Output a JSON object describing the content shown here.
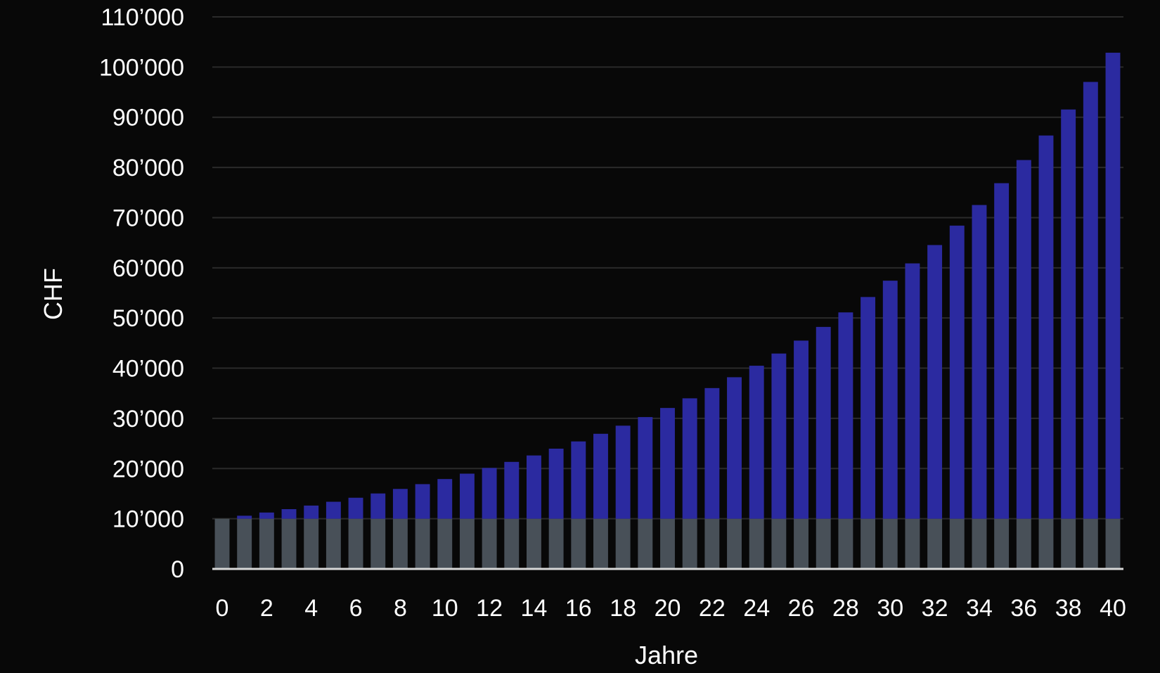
{
  "chart_data": {
    "type": "bar",
    "stacked": true,
    "xlabel": "Jahre",
    "ylabel": "CHF",
    "ylim": [
      0,
      110000
    ],
    "yticks": [
      "0",
      "10’000",
      "20’000",
      "30’000",
      "40’000",
      "50’000",
      "60’000",
      "70’000",
      "80’000",
      "90’000",
      "100’000",
      "110’000"
    ],
    "ytick_values": [
      0,
      10000,
      20000,
      30000,
      40000,
      50000,
      60000,
      70000,
      80000,
      90000,
      100000,
      110000
    ],
    "xticks": [
      "0",
      "2",
      "4",
      "6",
      "8",
      "10",
      "12",
      "14",
      "16",
      "18",
      "20",
      "22",
      "24",
      "26",
      "28",
      "30",
      "32",
      "34",
      "36",
      "38",
      "40"
    ],
    "xtick_values": [
      0,
      2,
      4,
      6,
      8,
      10,
      12,
      14,
      16,
      18,
      20,
      22,
      24,
      26,
      28,
      30,
      32,
      34,
      36,
      38,
      40
    ],
    "grid": true,
    "legend": "none",
    "x": [
      0,
      1,
      2,
      3,
      4,
      5,
      6,
      7,
      8,
      9,
      10,
      11,
      12,
      13,
      14,
      15,
      16,
      17,
      18,
      19,
      20,
      21,
      22,
      23,
      24,
      25,
      26,
      27,
      28,
      29,
      30,
      31,
      32,
      33,
      34,
      35,
      36,
      37,
      38,
      39,
      40
    ],
    "series": [
      {
        "color": "#485058",
        "values": [
          10000,
          10000,
          10000,
          10000,
          10000,
          10000,
          10000,
          10000,
          10000,
          10000,
          10000,
          10000,
          10000,
          10000,
          10000,
          10000,
          10000,
          10000,
          10000,
          10000,
          10000,
          10000,
          10000,
          10000,
          10000,
          10000,
          10000,
          10000,
          10000,
          10000,
          10000,
          10000,
          10000,
          10000,
          10000,
          10000,
          10000,
          10000,
          10000,
          10000,
          10000
        ]
      },
      {
        "color": "#2b2aa0",
        "values": [
          0,
          600,
          1236,
          1910,
          2625,
          3382,
          4185,
          5036,
          5938,
          6895,
          7908,
          8983,
          10122,
          11329,
          12609,
          13966,
          15404,
          16928,
          18543,
          20256,
          22071,
          23996,
          26035,
          28197,
          30489,
          32918,
          35493,
          38223,
          41116,
          44183,
          47435,
          50881,
          54535,
          58407,
          62512,
          66863,
          71475,
          76364,
          81546,
          87039,
          92861
        ]
      }
    ]
  },
  "colors": {
    "background": "#080808",
    "gridline": "#2a2a2a",
    "axis": "#d8d8d8",
    "text": "#ffffff"
  }
}
